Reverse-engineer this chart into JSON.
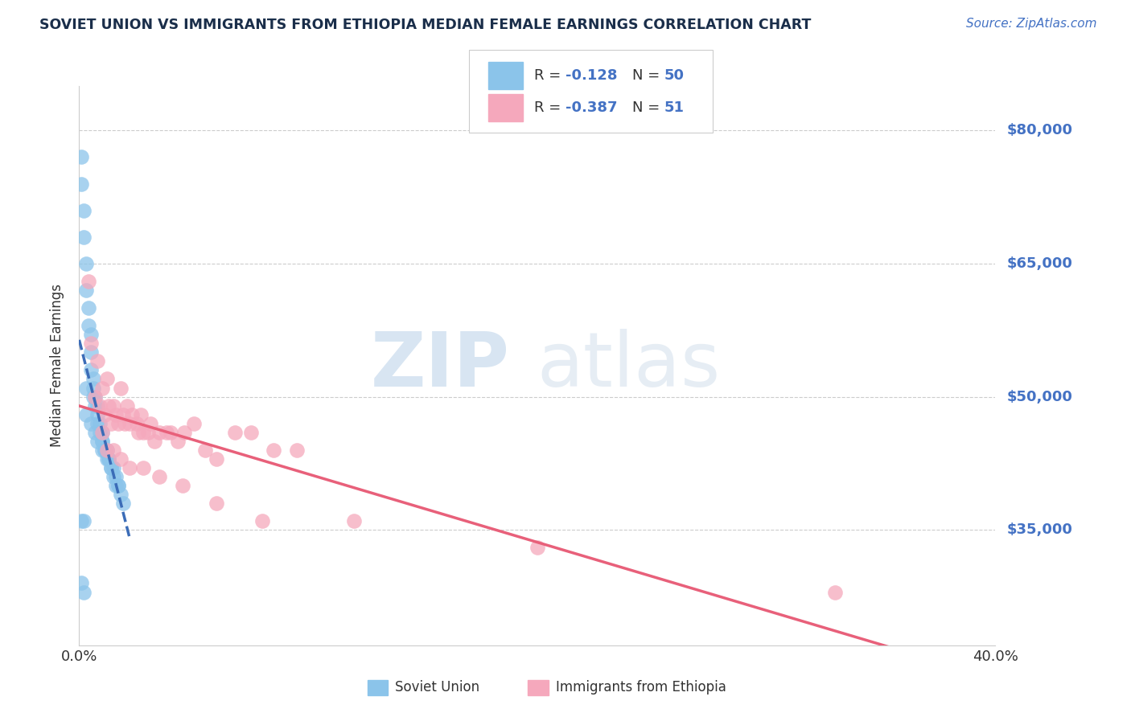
{
  "title": "SOVIET UNION VS IMMIGRANTS FROM ETHIOPIA MEDIAN FEMALE EARNINGS CORRELATION CHART",
  "source": "Source: ZipAtlas.com",
  "ylabel": "Median Female Earnings",
  "xlim": [
    0.0,
    0.4
  ],
  "ylim": [
    22000,
    85000
  ],
  "ytick_vals": [
    35000,
    50000,
    65000,
    80000
  ],
  "ytick_labels": [
    "$35,000",
    "$50,000",
    "$65,000",
    "$80,000"
  ],
  "color_blue": "#8BC4EA",
  "color_pink": "#F5A8BC",
  "color_blue_line": "#3B6CB7",
  "color_pink_line": "#E8607A",
  "watermark_zip": "ZIP",
  "watermark_atlas": "atlas",
  "title_color": "#1A2E4A",
  "source_color": "#4472C4",
  "axis_color": "#CCCCCC",
  "blue_scatter_x": [
    0.001,
    0.001,
    0.002,
    0.002,
    0.003,
    0.003,
    0.004,
    0.004,
    0.005,
    0.005,
    0.005,
    0.006,
    0.006,
    0.006,
    0.007,
    0.007,
    0.008,
    0.008,
    0.008,
    0.009,
    0.009,
    0.01,
    0.01,
    0.01,
    0.011,
    0.011,
    0.012,
    0.012,
    0.013,
    0.013,
    0.014,
    0.014,
    0.015,
    0.015,
    0.016,
    0.016,
    0.017,
    0.017,
    0.018,
    0.019,
    0.001,
    0.002,
    0.003,
    0.005,
    0.007,
    0.008,
    0.01,
    0.003,
    0.001,
    0.002
  ],
  "blue_scatter_y": [
    77000,
    74000,
    71000,
    68000,
    65000,
    62000,
    60000,
    58000,
    57000,
    55000,
    53000,
    52000,
    51000,
    50000,
    50000,
    49000,
    49000,
    48000,
    47000,
    47000,
    46000,
    46000,
    45000,
    45000,
    44000,
    44000,
    44000,
    43000,
    43000,
    43000,
    42000,
    42000,
    42000,
    41000,
    41000,
    40000,
    40000,
    40000,
    39000,
    38000,
    29000,
    28000,
    48000,
    47000,
    46000,
    45000,
    44000,
    51000,
    36000,
    36000
  ],
  "pink_scatter_x": [
    0.004,
    0.005,
    0.007,
    0.008,
    0.009,
    0.01,
    0.011,
    0.012,
    0.013,
    0.014,
    0.015,
    0.016,
    0.017,
    0.018,
    0.019,
    0.02,
    0.021,
    0.022,
    0.023,
    0.025,
    0.026,
    0.027,
    0.028,
    0.03,
    0.031,
    0.033,
    0.035,
    0.038,
    0.04,
    0.043,
    0.046,
    0.05,
    0.055,
    0.06,
    0.068,
    0.075,
    0.085,
    0.095,
    0.01,
    0.012,
    0.015,
    0.018,
    0.022,
    0.028,
    0.035,
    0.045,
    0.06,
    0.08,
    0.12,
    0.2,
    0.33
  ],
  "pink_scatter_y": [
    63000,
    56000,
    50000,
    54000,
    49000,
    51000,
    48000,
    52000,
    49000,
    47000,
    49000,
    48000,
    47000,
    51000,
    48000,
    47000,
    49000,
    47000,
    48000,
    47000,
    46000,
    48000,
    46000,
    46000,
    47000,
    45000,
    46000,
    46000,
    46000,
    45000,
    46000,
    47000,
    44000,
    43000,
    46000,
    46000,
    44000,
    44000,
    46000,
    44000,
    44000,
    43000,
    42000,
    42000,
    41000,
    40000,
    38000,
    36000,
    36000,
    33000,
    28000
  ]
}
